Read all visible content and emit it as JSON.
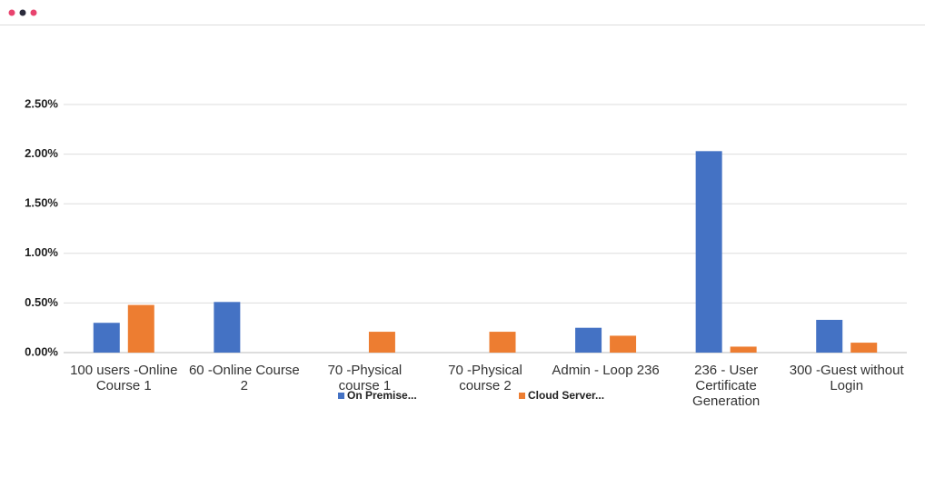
{
  "chart_data": {
    "type": "bar",
    "categories": [
      "100 users -Online Course 1",
      "60 -Online Course 2",
      "70 -Physical course 1",
      "70 -Physical course 2",
      "Admin - Loop 236",
      "236 - User Certificate Generation",
      "300 -Guest without Login"
    ],
    "series": [
      {
        "name": "On Premise...",
        "color": "#4472c4",
        "values": [
          0.3,
          0.51,
          null,
          null,
          0.25,
          2.03,
          0.33
        ]
      },
      {
        "name": "Cloud Server...",
        "color": "#ed7d31",
        "values": [
          0.48,
          null,
          0.21,
          0.21,
          0.17,
          0.06,
          0.1
        ]
      }
    ],
    "ylim": [
      0,
      2.5
    ],
    "yticks": [
      {
        "value": 0,
        "label": "0.00%"
      },
      {
        "value": 0.5,
        "label": "0.50%"
      },
      {
        "value": 1,
        "label": "1.00%"
      },
      {
        "value": 1.5,
        "label": "1.50%"
      },
      {
        "value": 2,
        "label": "2.00%"
      },
      {
        "value": 2.5,
        "label": "2.50%"
      }
    ],
    "grid": true
  }
}
